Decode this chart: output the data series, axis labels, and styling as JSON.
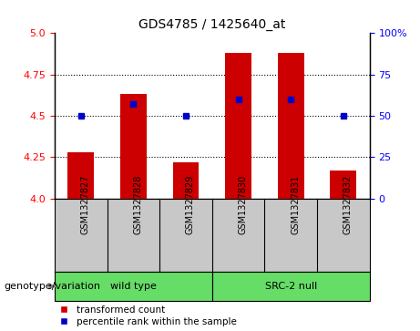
{
  "title": "GDS4785 / 1425640_at",
  "samples": [
    "GSM1327827",
    "GSM1327828",
    "GSM1327829",
    "GSM1327830",
    "GSM1327831",
    "GSM1327832"
  ],
  "red_values": [
    4.28,
    4.63,
    4.22,
    4.88,
    4.88,
    4.17
  ],
  "blue_values": [
    4.5,
    4.57,
    4.5,
    4.6,
    4.6,
    4.5
  ],
  "ymin": 4.0,
  "ymax": 5.0,
  "yticks_left": [
    4.0,
    4.25,
    4.5,
    4.75,
    5.0
  ],
  "yticks_right": [
    0,
    25,
    50,
    75,
    100
  ],
  "group_label": "genotype/variation",
  "groups": [
    {
      "label": "wild type",
      "color": "#66DD66"
    },
    {
      "label": "SRC-2 null",
      "color": "#66DD66"
    }
  ],
  "bar_color": "#CC0000",
  "dot_color": "#0000CC",
  "bar_bottom": 4.0,
  "background_color": "#ffffff",
  "tick_area_bg": "#c8c8c8",
  "legend_items": [
    "transformed count",
    "percentile rank within the sample"
  ]
}
